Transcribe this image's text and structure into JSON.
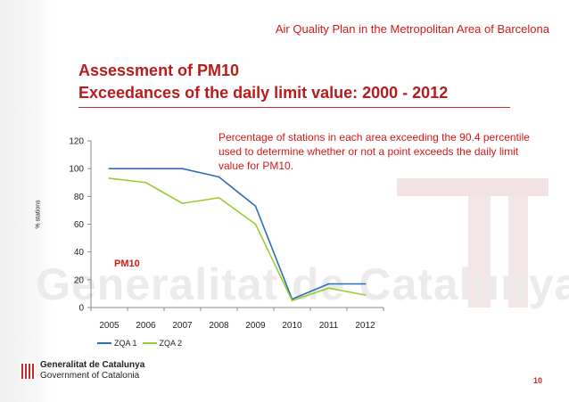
{
  "header": {
    "text": "Air Quality Plan in the Metropolitan Area of Barcelona"
  },
  "title": {
    "line1": "Assessment of PM10",
    "line2": "Exceedances of the daily limit value: 2000 - 2012"
  },
  "annotation": "Percentage of stations in each area exceeding the 90.4 percentile used to determine whether or not a point exceeds the daily limit value for PM10.",
  "pm_label": "PM10",
  "footer": {
    "org_name": "Generalitat de Catalunya",
    "org_name_en": "Government of Catalonia",
    "page_number": "10"
  },
  "watermark": {
    "text": "Generalitat de Catalunya"
  },
  "colors": {
    "accent": "#c62828",
    "zqa1": "#2f6db5",
    "zqa2": "#9acd32"
  },
  "chart_data": {
    "type": "line",
    "title": "",
    "xlabel": "",
    "ylabel": "% stations",
    "categories": [
      "2005",
      "2006",
      "2007",
      "2008",
      "2009",
      "2010",
      "2011",
      "2012"
    ],
    "ylim": [
      0,
      120
    ],
    "yticks": [
      0,
      20,
      40,
      60,
      80,
      100,
      120
    ],
    "series": [
      {
        "name": "ZQA 1",
        "values": [
          100,
          100,
          100,
          94,
          73,
          6,
          17,
          17
        ]
      },
      {
        "name": "ZQA 2",
        "values": [
          93,
          90,
          75,
          79,
          60,
          5,
          14,
          9
        ]
      }
    ],
    "legend": "bottom-left",
    "grid": false
  }
}
